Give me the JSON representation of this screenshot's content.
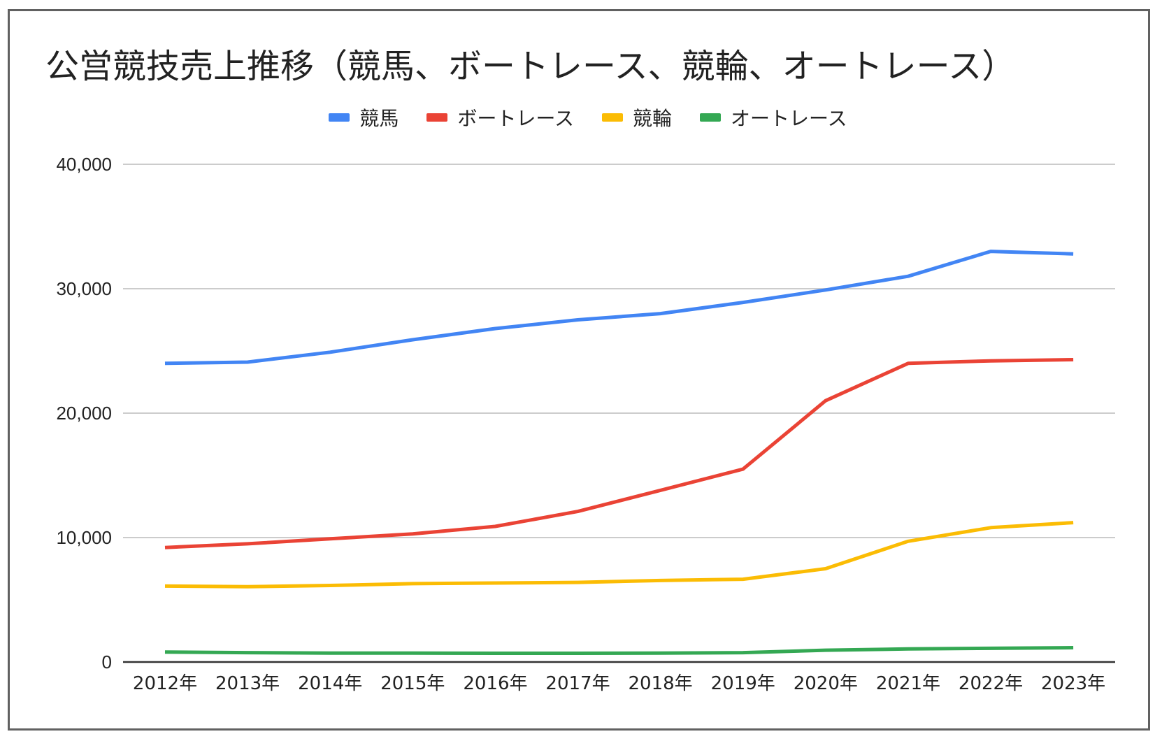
{
  "chart_data": {
    "type": "line",
    "title": "公営競技売上推移（競馬、ボートレース、競輪、オートレース）",
    "xlabel": "",
    "ylabel": "",
    "categories": [
      "2012年",
      "2013年",
      "2014年",
      "2015年",
      "2016年",
      "2017年",
      "2018年",
      "2019年",
      "2020年",
      "2021年",
      "2022年",
      "2023年"
    ],
    "ylim": [
      0,
      40000
    ],
    "yticks": [
      0,
      10000,
      20000,
      30000,
      40000
    ],
    "ytick_labels": [
      "0",
      "10,000",
      "20,000",
      "30,000",
      "40,000"
    ],
    "grid": true,
    "legend_position": "top",
    "series": [
      {
        "name": "競馬",
        "color": "#4285f4",
        "values": [
          24000,
          24100,
          24900,
          25900,
          26800,
          27500,
          28000,
          28900,
          29900,
          31000,
          33000,
          32800
        ]
      },
      {
        "name": "ボートレース",
        "color": "#ea4335",
        "values": [
          9200,
          9500,
          9900,
          10300,
          10900,
          12100,
          13800,
          15500,
          21000,
          24000,
          24200,
          24300
        ]
      },
      {
        "name": "競輪",
        "color": "#fbbc04",
        "values": [
          6100,
          6050,
          6150,
          6300,
          6350,
          6400,
          6550,
          6650,
          7500,
          9700,
          10800,
          11200
        ]
      },
      {
        "name": "オートレース",
        "color": "#34a853",
        "values": [
          800,
          750,
          720,
          720,
          700,
          700,
          720,
          750,
          950,
          1050,
          1100,
          1150
        ]
      }
    ]
  }
}
